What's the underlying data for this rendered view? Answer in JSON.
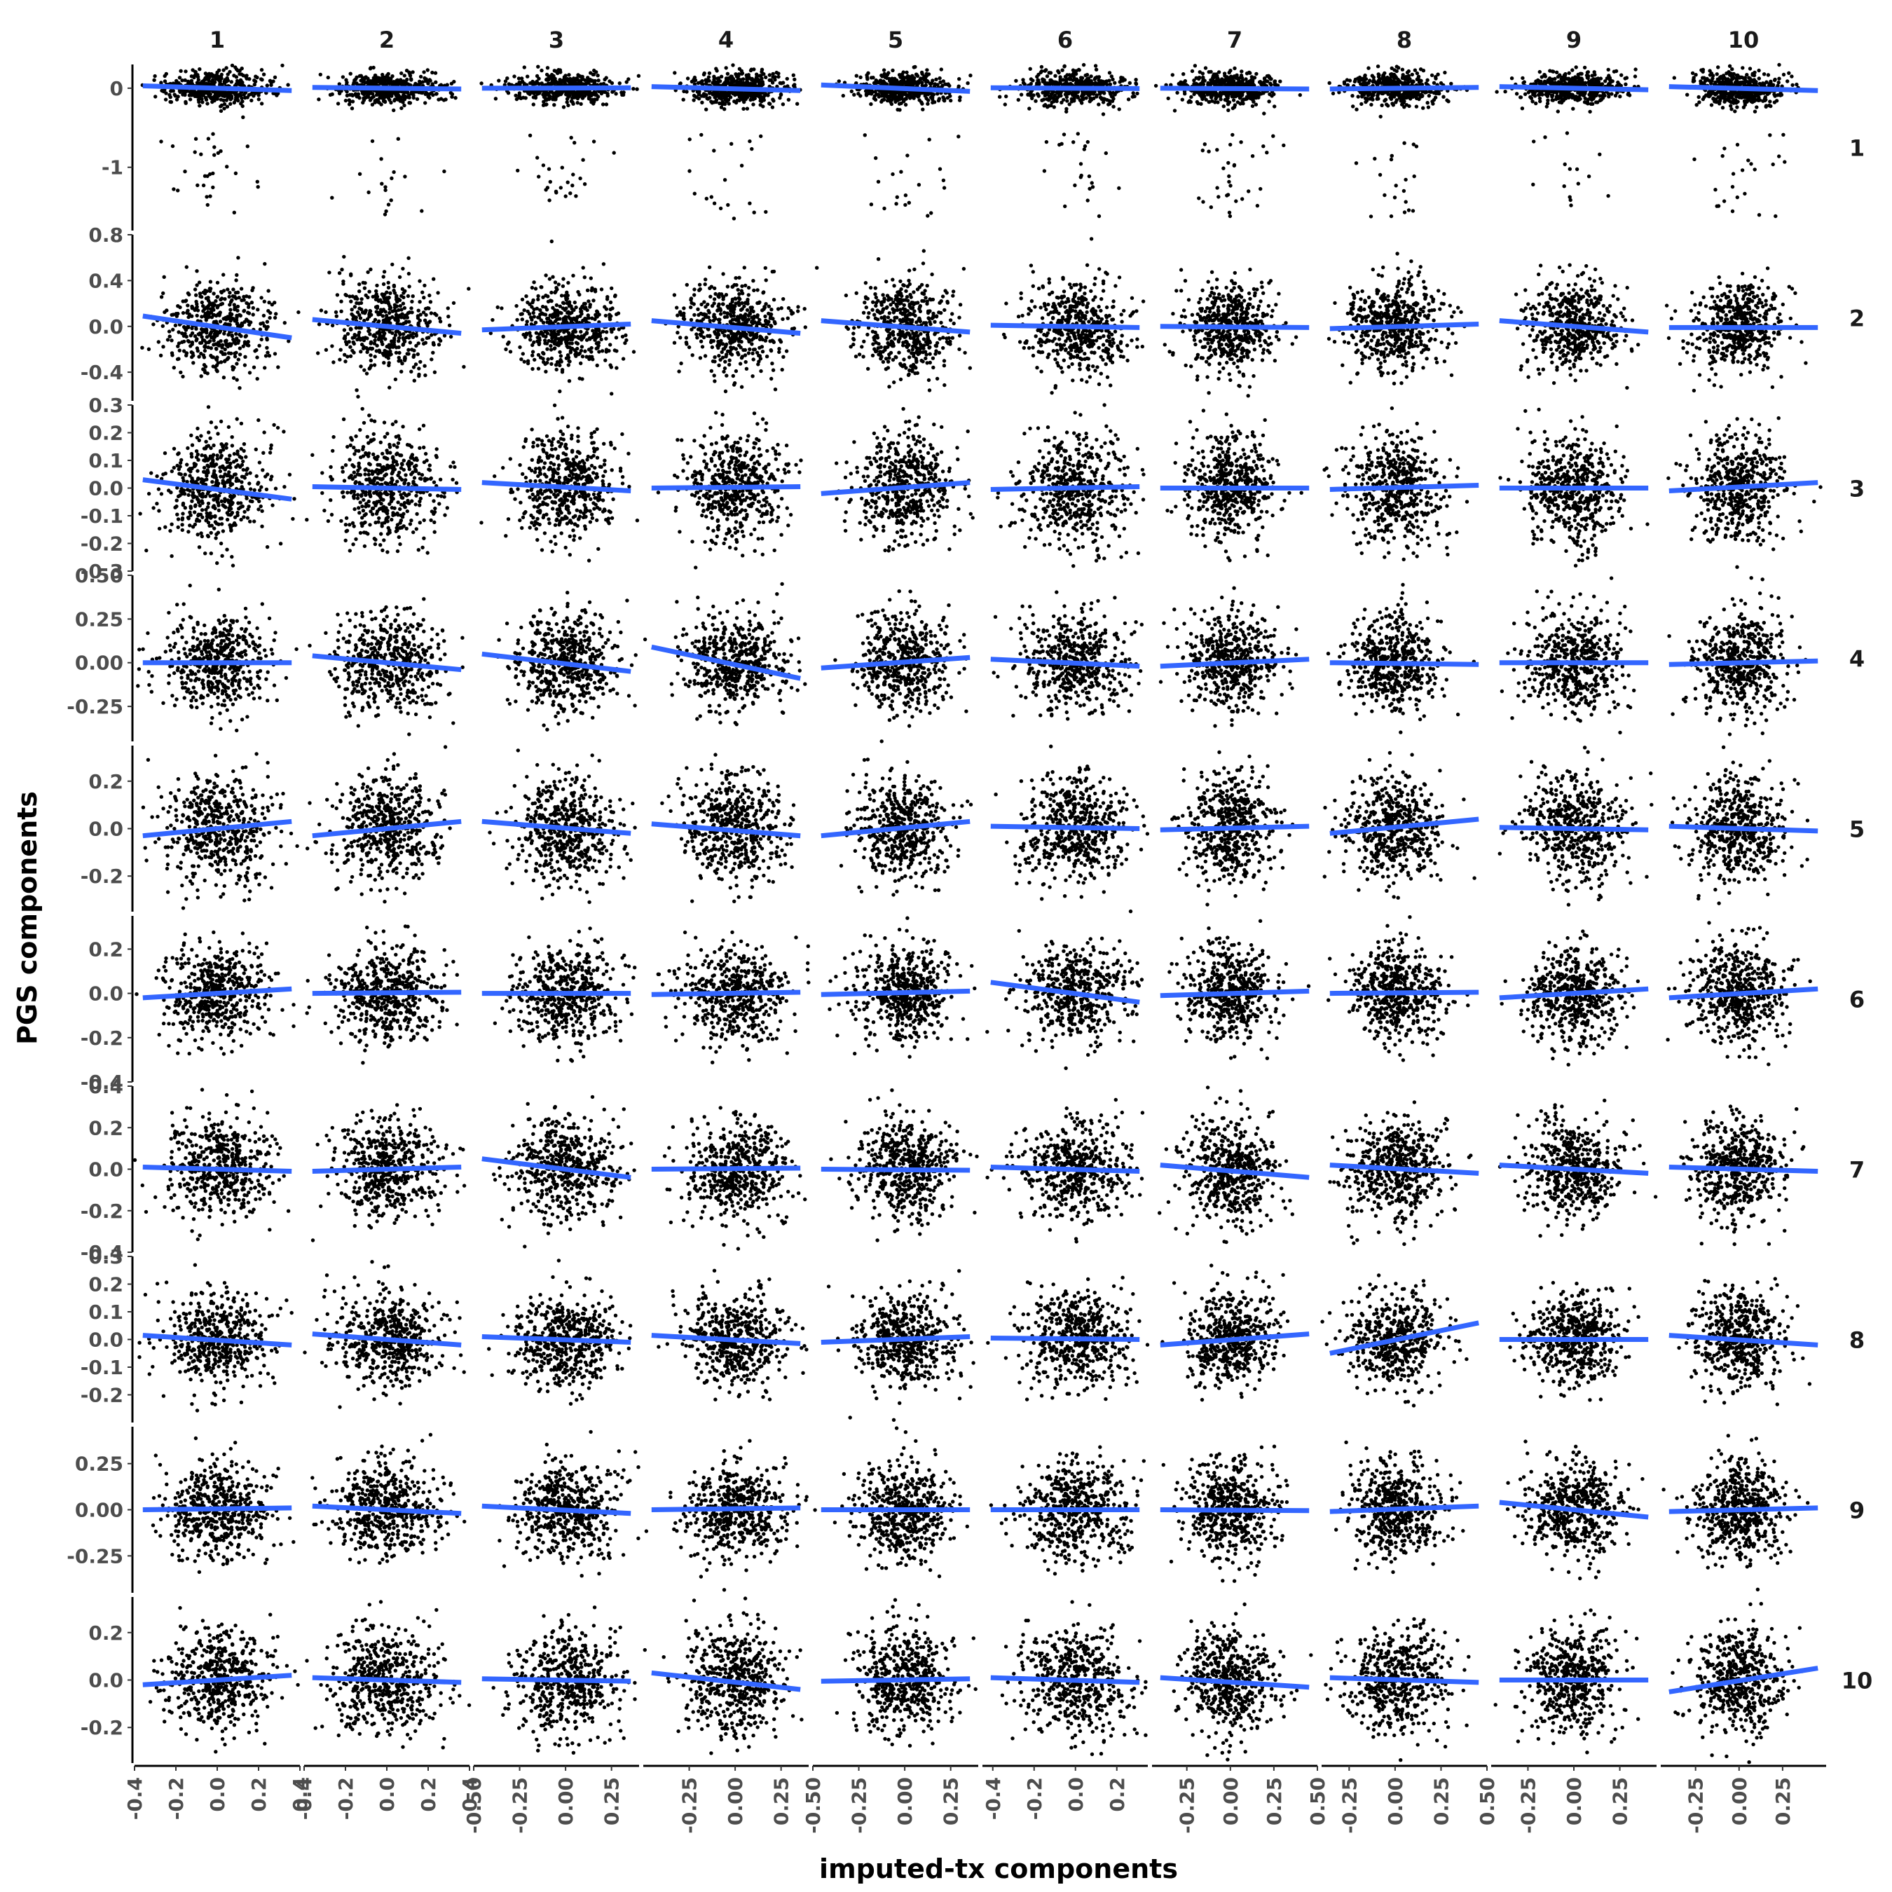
{
  "chart_data": {
    "type": "scatter",
    "layout": "facet-grid",
    "xlabel": "imputed-tx components",
    "ylabel": "PGS components",
    "column_strips": [
      "1",
      "2",
      "3",
      "4",
      "5",
      "6",
      "7",
      "8",
      "9",
      "10"
    ],
    "row_strips": [
      "1",
      "2",
      "3",
      "4",
      "5",
      "6",
      "7",
      "8",
      "9",
      "10"
    ],
    "points_per_panel": 500,
    "point_color": "#000000",
    "fit_line_color": "#3366FF",
    "columns": [
      {
        "strip": "1",
        "xlim": [
          -0.4,
          0.4
        ],
        "ticks": [
          -0.4,
          -0.2,
          0.0,
          0.2,
          0.4
        ],
        "tick_labels": [
          "-0.4",
          "-0.2",
          "0.0",
          "0.2",
          "0.4"
        ],
        "x_sd": 0.13
      },
      {
        "strip": "2",
        "xlim": [
          -0.4,
          0.4
        ],
        "ticks": [
          -0.4,
          -0.2,
          0.0,
          0.2,
          0.4
        ],
        "tick_labels": [
          "-0.4",
          "-0.2",
          "0.0",
          "0.2",
          "0.4"
        ],
        "x_sd": 0.13
      },
      {
        "strip": "3",
        "xlim": [
          -0.5,
          0.4
        ],
        "ticks": [
          -0.5,
          -0.25,
          0.0,
          0.25
        ],
        "tick_labels": [
          "-0.50",
          "-0.25",
          "0.00",
          "0.25"
        ],
        "x_sd": 0.14
      },
      {
        "strip": "4",
        "xlim": [
          -0.5,
          0.4
        ],
        "ticks": [
          -0.25,
          0.0,
          0.25
        ],
        "tick_labels": [
          "-0.25",
          "0.00",
          "0.25"
        ],
        "x_sd": 0.14
      },
      {
        "strip": "5",
        "xlim": [
          -0.5,
          0.4
        ],
        "ticks": [
          -0.5,
          -0.25,
          0.0,
          0.25
        ],
        "tick_labels": [
          "-0.50",
          "-0.25",
          "0.00",
          "0.25"
        ],
        "x_sd": 0.13
      },
      {
        "strip": "6",
        "xlim": [
          -0.45,
          0.35
        ],
        "ticks": [
          -0.4,
          -0.2,
          0.0,
          0.2
        ],
        "tick_labels": [
          "-0.4",
          "-0.2",
          "0.0",
          "0.2"
        ],
        "x_sd": 0.13
      },
      {
        "strip": "7",
        "xlim": [
          -0.45,
          0.5
        ],
        "ticks": [
          -0.25,
          0.0,
          0.25,
          0.5
        ],
        "tick_labels": [
          "-0.25",
          "0.00",
          "0.25",
          "0.50"
        ],
        "x_sd": 0.13
      },
      {
        "strip": "8",
        "xlim": [
          -0.4,
          0.5
        ],
        "ticks": [
          -0.25,
          0.0,
          0.25,
          0.5
        ],
        "tick_labels": [
          "-0.25",
          "0.00",
          "0.25",
          "0.50"
        ],
        "x_sd": 0.13
      },
      {
        "strip": "9",
        "xlim": [
          -0.45,
          0.45
        ],
        "ticks": [
          -0.25,
          0.0,
          0.25
        ],
        "tick_labels": [
          "-0.25",
          "0.00",
          "0.25"
        ],
        "x_sd": 0.13
      },
      {
        "strip": "10",
        "xlim": [
          -0.45,
          0.5
        ],
        "ticks": [
          -0.25,
          0.0,
          0.25
        ],
        "tick_labels": [
          "-0.25",
          "0.00",
          "0.25"
        ],
        "x_sd": 0.13
      }
    ],
    "rows": [
      {
        "strip": "1",
        "ylim": [
          -1.8,
          0.3
        ],
        "ticks": [
          0,
          -1
        ],
        "tick_labels": [
          "0",
          "-1"
        ],
        "y_sd": 0.1,
        "outliers": true
      },
      {
        "strip": "2",
        "ylim": [
          -0.65,
          0.8
        ],
        "ticks": [
          0.8,
          0.4,
          0.0,
          -0.4
        ],
        "tick_labels": [
          "0.8",
          "0.4",
          "0.0",
          "-0.4"
        ],
        "y_sd": 0.2
      },
      {
        "strip": "3",
        "ylim": [
          -0.3,
          0.3
        ],
        "ticks": [
          0.3,
          0.2,
          0.1,
          0.0,
          -0.1,
          -0.2,
          -0.3
        ],
        "tick_labels": [
          "0.3",
          "0.2",
          "0.1",
          "0.0",
          "-0.1",
          "-0.2",
          "-0.3"
        ],
        "y_sd": 0.1
      },
      {
        "strip": "4",
        "ylim": [
          -0.45,
          0.5
        ],
        "ticks": [
          0.5,
          0.25,
          0.0,
          -0.25
        ],
        "tick_labels": [
          "0.50",
          "0.25",
          "0.00",
          "-0.25"
        ],
        "y_sd": 0.14
      },
      {
        "strip": "5",
        "ylim": [
          -0.35,
          0.35
        ],
        "ticks": [
          0.2,
          0.0,
          -0.2
        ],
        "tick_labels": [
          "0.2",
          "0.0",
          "-0.2"
        ],
        "y_sd": 0.11
      },
      {
        "strip": "6",
        "ylim": [
          -0.4,
          0.35
        ],
        "ticks": [
          0.2,
          0.0,
          -0.2,
          -0.4
        ],
        "tick_labels": [
          "0.2",
          "0.0",
          "-0.2",
          "-0.4"
        ],
        "y_sd": 0.11
      },
      {
        "strip": "7",
        "ylim": [
          -0.4,
          0.4
        ],
        "ticks": [
          0.4,
          0.2,
          0.0,
          -0.2,
          -0.4
        ],
        "tick_labels": [
          "0.4",
          "0.2",
          "0.0",
          "-0.2",
          "-0.4"
        ],
        "y_sd": 0.12
      },
      {
        "strip": "8",
        "ylim": [
          -0.3,
          0.3
        ],
        "ticks": [
          0.3,
          0.2,
          0.1,
          0.0,
          -0.1,
          -0.2
        ],
        "tick_labels": [
          "0.3",
          "0.2",
          "0.1",
          "0.0",
          "-0.1",
          "-0.2"
        ],
        "y_sd": 0.085
      },
      {
        "strip": "9",
        "ylim": [
          -0.45,
          0.45
        ],
        "ticks": [
          0.25,
          0.0,
          -0.25
        ],
        "tick_labels": [
          "0.25",
          "0.00",
          "-0.25"
        ],
        "y_sd": 0.13
      },
      {
        "strip": "10",
        "ylim": [
          -0.35,
          0.35
        ],
        "ticks": [
          0.2,
          0.0,
          -0.2
        ],
        "tick_labels": [
          "0.2",
          "0.0",
          "-0.2"
        ],
        "y_sd": 0.11
      }
    ],
    "fit_lines": [
      [
        [
          0.03,
          -0.03
        ],
        [
          0.01,
          -0.01
        ],
        [
          0.0,
          0.005
        ],
        [
          0.02,
          -0.03
        ],
        [
          0.04,
          -0.04
        ],
        [
          0.005,
          -0.005
        ],
        [
          0.0,
          -0.01
        ],
        [
          -0.01,
          0.01
        ],
        [
          0.02,
          -0.02
        ],
        [
          0.02,
          -0.03
        ]
      ],
      [
        [
          0.09,
          -0.1
        ],
        [
          0.06,
          -0.06
        ],
        [
          -0.03,
          0.02
        ],
        [
          0.05,
          -0.06
        ],
        [
          0.05,
          -0.05
        ],
        [
          0.01,
          -0.01
        ],
        [
          0.0,
          -0.01
        ],
        [
          -0.02,
          0.02
        ],
        [
          0.05,
          -0.05
        ],
        [
          -0.01,
          -0.01
        ]
      ],
      [
        [
          0.03,
          -0.04
        ],
        [
          0.005,
          -0.005
        ],
        [
          0.02,
          -0.01
        ],
        [
          0.0,
          0.005
        ],
        [
          -0.02,
          0.02
        ],
        [
          -0.005,
          0.005
        ],
        [
          0.0,
          0.0
        ],
        [
          -0.005,
          0.01
        ],
        [
          0.0,
          0.0
        ],
        [
          -0.01,
          0.02
        ]
      ],
      [
        [
          0.0,
          0.0
        ],
        [
          0.04,
          -0.04
        ],
        [
          0.05,
          -0.05
        ],
        [
          0.09,
          -0.09
        ],
        [
          -0.03,
          0.03
        ],
        [
          0.02,
          -0.02
        ],
        [
          -0.02,
          0.02
        ],
        [
          0.0,
          -0.01
        ],
        [
          0.0,
          0.0
        ],
        [
          -0.01,
          0.01
        ]
      ],
      [
        [
          -0.03,
          0.03
        ],
        [
          -0.03,
          0.03
        ],
        [
          0.03,
          -0.02
        ],
        [
          0.02,
          -0.03
        ],
        [
          -0.03,
          0.03
        ],
        [
          0.01,
          0.0
        ],
        [
          -0.005,
          0.01
        ],
        [
          -0.02,
          0.04
        ],
        [
          0.005,
          -0.005
        ],
        [
          0.01,
          -0.01
        ]
      ],
      [
        [
          -0.02,
          0.02
        ],
        [
          0.0,
          0.005
        ],
        [
          0.0,
          0.0
        ],
        [
          -0.005,
          0.005
        ],
        [
          -0.005,
          0.01
        ],
        [
          0.05,
          -0.04
        ],
        [
          -0.01,
          0.01
        ],
        [
          0.0,
          0.005
        ],
        [
          -0.02,
          0.02
        ],
        [
          -0.02,
          0.02
        ]
      ],
      [
        [
          0.01,
          -0.01
        ],
        [
          -0.01,
          0.01
        ],
        [
          0.05,
          -0.04
        ],
        [
          0.0,
          0.005
        ],
        [
          0.0,
          -0.005
        ],
        [
          0.01,
          -0.01
        ],
        [
          0.02,
          -0.04
        ],
        [
          0.02,
          -0.02
        ],
        [
          0.02,
          -0.02
        ],
        [
          0.01,
          -0.01
        ]
      ],
      [
        [
          0.015,
          -0.02
        ],
        [
          0.02,
          -0.02
        ],
        [
          0.01,
          -0.01
        ],
        [
          0.015,
          -0.015
        ],
        [
          -0.01,
          0.01
        ],
        [
          0.005,
          0.0
        ],
        [
          -0.02,
          0.02
        ],
        [
          -0.05,
          0.06
        ],
        [
          0.0,
          0.0
        ],
        [
          0.015,
          -0.02
        ]
      ],
      [
        [
          0.0,
          0.01
        ],
        [
          0.02,
          -0.02
        ],
        [
          0.02,
          -0.02
        ],
        [
          0.0,
          0.01
        ],
        [
          0.0,
          0.0
        ],
        [
          0.0,
          0.0
        ],
        [
          0.0,
          -0.005
        ],
        [
          -0.01,
          0.02
        ],
        [
          0.04,
          -0.04
        ],
        [
          -0.01,
          0.01
        ]
      ],
      [
        [
          -0.02,
          0.02
        ],
        [
          0.01,
          -0.01
        ],
        [
          0.005,
          -0.005
        ],
        [
          0.03,
          -0.04
        ],
        [
          -0.005,
          0.005
        ],
        [
          0.01,
          -0.01
        ],
        [
          0.01,
          -0.03
        ],
        [
          0.01,
          -0.01
        ],
        [
          0.0,
          0.0
        ],
        [
          -0.05,
          0.05
        ]
      ]
    ]
  }
}
